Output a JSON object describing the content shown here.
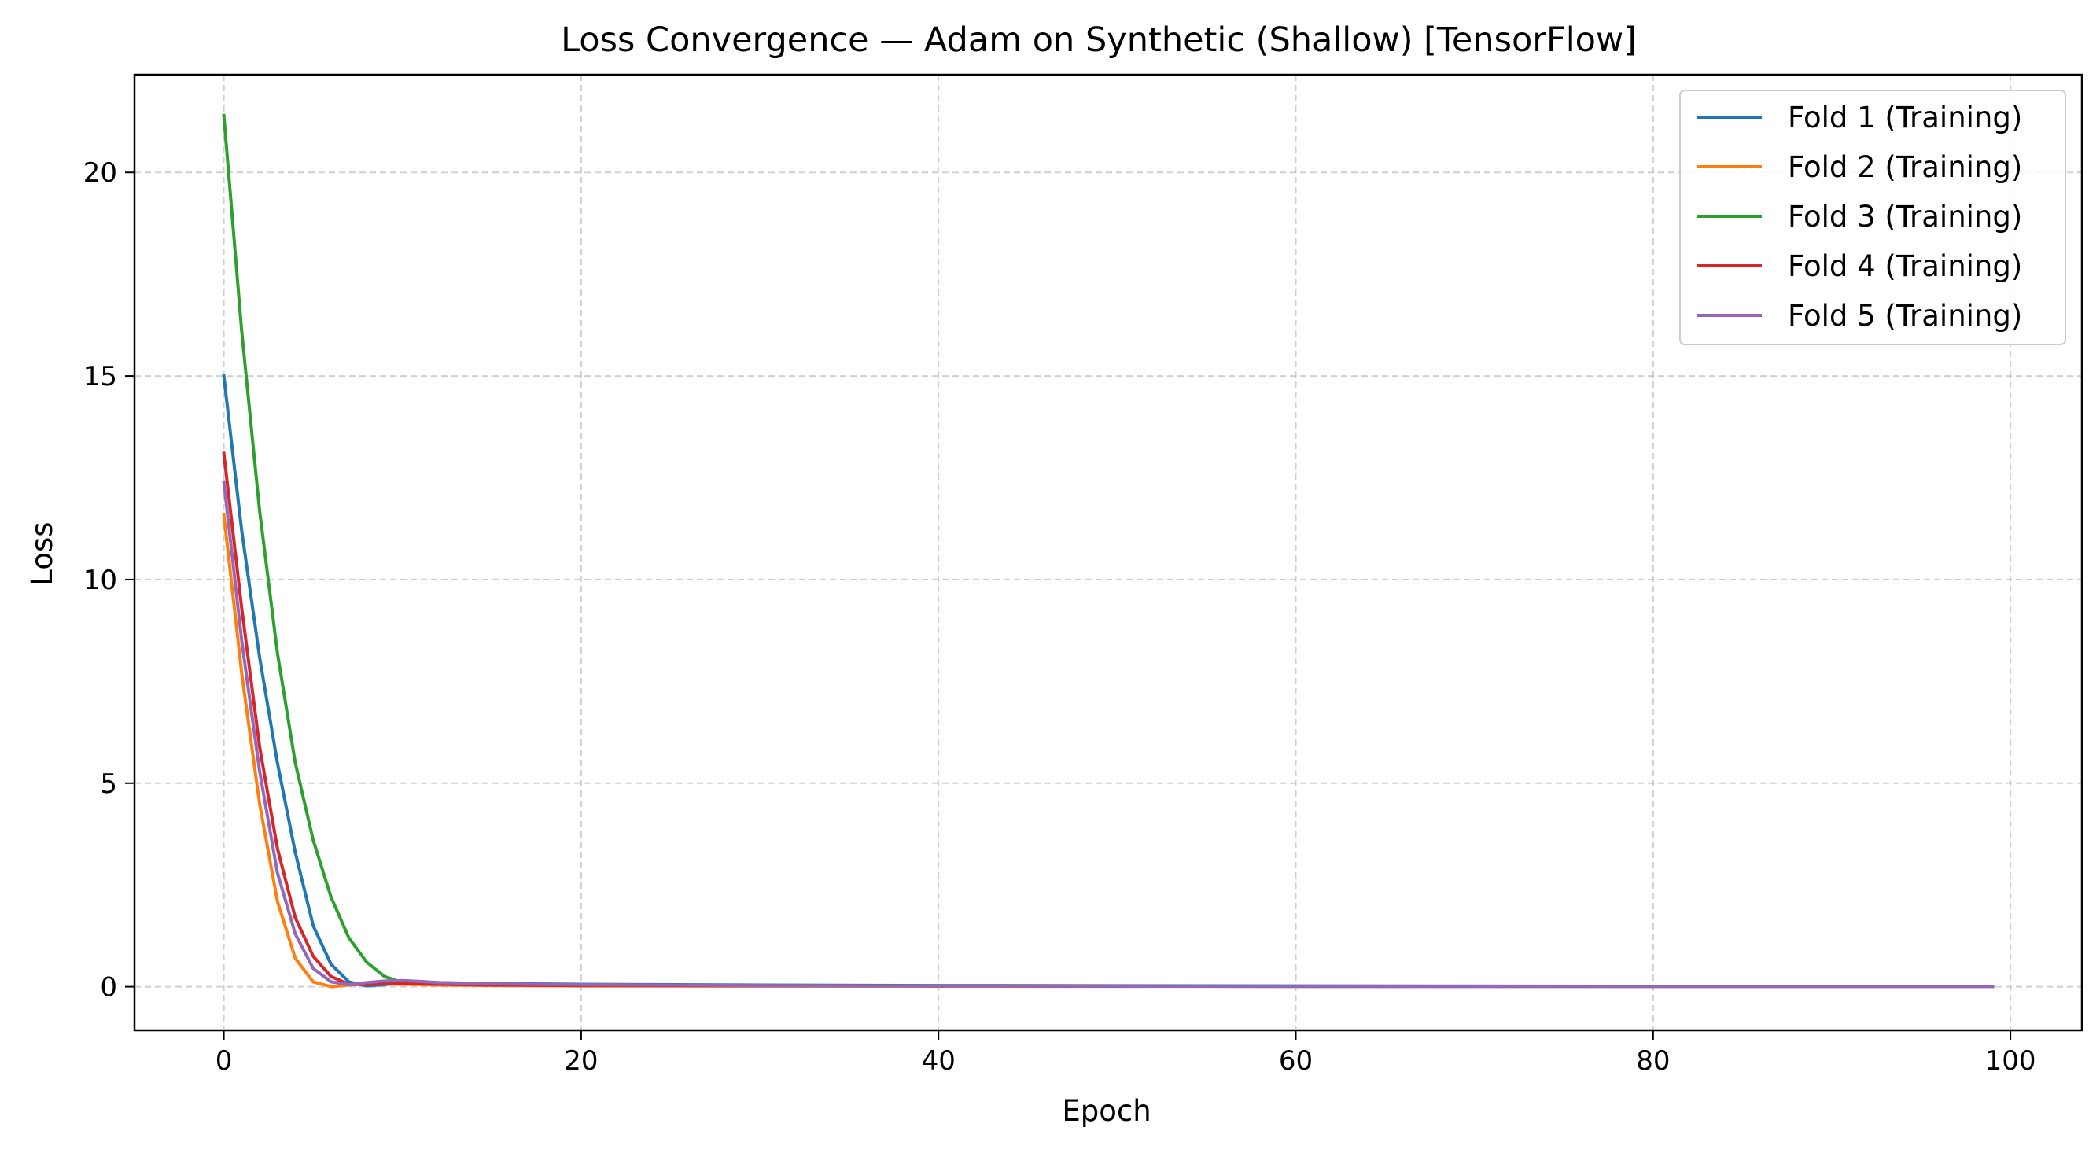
{
  "chart_data": {
    "type": "line",
    "title": "Loss Convergence — Adam on Synthetic (Shallow) [TensorFlow]",
    "xlabel": "Epoch",
    "ylabel": "Loss",
    "xlim": [
      -5,
      104
    ],
    "ylim": [
      -1.07,
      22.4
    ],
    "xticks": [
      0,
      20,
      40,
      60,
      80,
      100
    ],
    "yticks": [
      0,
      5,
      10,
      15,
      20
    ],
    "grid": true,
    "legend_position": "top-right",
    "series": [
      {
        "name": "Fold 1 (Training)",
        "color": "#1f77b4",
        "points": [
          [
            0,
            15.0
          ],
          [
            1,
            11.2
          ],
          [
            2,
            8.1
          ],
          [
            3,
            5.5
          ],
          [
            4,
            3.3
          ],
          [
            5,
            1.5
          ],
          [
            6,
            0.55
          ],
          [
            7,
            0.12
          ],
          [
            8,
            0.02
          ],
          [
            9,
            0.05
          ],
          [
            10,
            0.1
          ],
          [
            11,
            0.12
          ],
          [
            12,
            0.1
          ],
          [
            13,
            0.09
          ],
          [
            15,
            0.08
          ],
          [
            20,
            0.06
          ],
          [
            30,
            0.04
          ],
          [
            40,
            0.03
          ],
          [
            60,
            0.02
          ],
          [
            80,
            0.01
          ],
          [
            99,
            0.01
          ]
        ]
      },
      {
        "name": "Fold 2 (Training)",
        "color": "#ff7f0e",
        "points": [
          [
            0,
            11.6
          ],
          [
            1,
            7.7
          ],
          [
            2,
            4.5
          ],
          [
            3,
            2.1
          ],
          [
            4,
            0.7
          ],
          [
            5,
            0.12
          ],
          [
            6,
            0.0
          ],
          [
            7,
            0.04
          ],
          [
            8,
            0.08
          ],
          [
            9,
            0.07
          ],
          [
            10,
            0.06
          ],
          [
            12,
            0.04
          ],
          [
            15,
            0.03
          ],
          [
            20,
            0.02
          ],
          [
            40,
            0.01
          ],
          [
            60,
            0.01
          ],
          [
            80,
            0.01
          ],
          [
            99,
            0.01
          ]
        ]
      },
      {
        "name": "Fold 3 (Training)",
        "color": "#2ca02c",
        "points": [
          [
            0,
            21.4
          ],
          [
            1,
            16.1
          ],
          [
            2,
            11.7
          ],
          [
            3,
            8.2
          ],
          [
            4,
            5.5
          ],
          [
            5,
            3.6
          ],
          [
            6,
            2.2
          ],
          [
            7,
            1.2
          ],
          [
            8,
            0.6
          ],
          [
            9,
            0.25
          ],
          [
            10,
            0.1
          ],
          [
            11,
            0.07
          ],
          [
            12,
            0.07
          ],
          [
            15,
            0.06
          ],
          [
            20,
            0.05
          ],
          [
            30,
            0.03
          ],
          [
            40,
            0.02
          ],
          [
            60,
            0.01
          ],
          [
            80,
            0.01
          ],
          [
            99,
            0.01
          ]
        ]
      },
      {
        "name": "Fold 4 (Training)",
        "color": "#d62728",
        "points": [
          [
            0,
            13.1
          ],
          [
            1,
            9.3
          ],
          [
            2,
            5.9
          ],
          [
            3,
            3.4
          ],
          [
            4,
            1.7
          ],
          [
            5,
            0.75
          ],
          [
            6,
            0.25
          ],
          [
            7,
            0.06
          ],
          [
            8,
            0.05
          ],
          [
            9,
            0.07
          ],
          [
            10,
            0.08
          ],
          [
            12,
            0.06
          ],
          [
            15,
            0.04
          ],
          [
            20,
            0.03
          ],
          [
            40,
            0.02
          ],
          [
            60,
            0.01
          ],
          [
            80,
            0.01
          ],
          [
            99,
            0.01
          ]
        ]
      },
      {
        "name": "Fold 5 (Training)",
        "color": "#9467bd",
        "points": [
          [
            0,
            12.4
          ],
          [
            1,
            8.5
          ],
          [
            2,
            5.3
          ],
          [
            3,
            2.8
          ],
          [
            4,
            1.3
          ],
          [
            5,
            0.45
          ],
          [
            6,
            0.12
          ],
          [
            7,
            0.05
          ],
          [
            8,
            0.1
          ],
          [
            9,
            0.14
          ],
          [
            10,
            0.15
          ],
          [
            11,
            0.13
          ],
          [
            12,
            0.1
          ],
          [
            15,
            0.07
          ],
          [
            20,
            0.05
          ],
          [
            30,
            0.03
          ],
          [
            40,
            0.02
          ],
          [
            60,
            0.01
          ],
          [
            80,
            0.01
          ],
          [
            99,
            0.01
          ]
        ]
      }
    ]
  }
}
